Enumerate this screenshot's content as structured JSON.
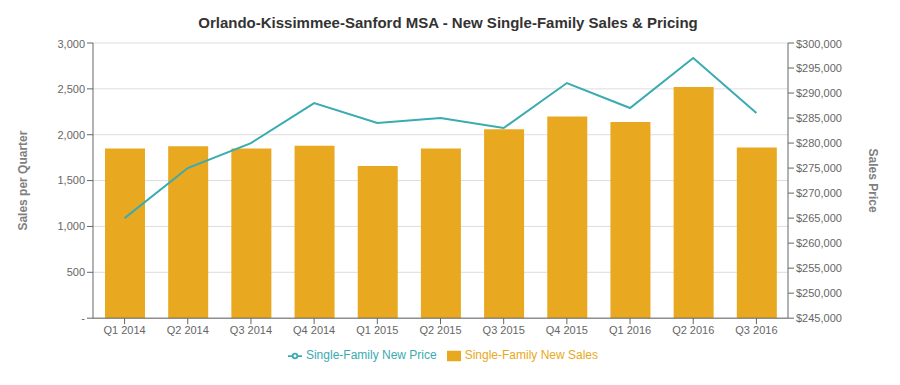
{
  "chart_data": {
    "type": "bar",
    "title": "Orlando-Kissimmee-Sanford  MSA - New Single-Family Sales & Pricing",
    "categories": [
      "Q1 2014",
      "Q2 2014",
      "Q3 2014",
      "Q4 2014",
      "Q1 2015",
      "Q2 2015",
      "Q3 2015",
      "Q4 2015",
      "Q1 2016",
      "Q2 2016",
      "Q3 2016"
    ],
    "series": [
      {
        "name": "Single-Family New Sales",
        "type": "bar",
        "color": "#E8A820",
        "values": [
          1850,
          1875,
          1850,
          1880,
          1660,
          1850,
          2060,
          2200,
          2140,
          2520,
          1860
        ]
      },
      {
        "name": "Single-Family New Price",
        "type": "line",
        "axis": "y2",
        "color": "#3AABB0",
        "values": [
          265000,
          275000,
          280000,
          288000,
          284000,
          285000,
          283000,
          292000,
          287000,
          297000,
          286000
        ]
      }
    ],
    "ylabel": "Sales per Quarter",
    "y2label": "Sales Price",
    "ylim": [
      0,
      3000
    ],
    "yticks": [
      {
        "value": 0,
        "label": "-"
      },
      500,
      {
        "value": 1000,
        "label": "1,000"
      },
      {
        "value": 1500,
        "label": "1,500"
      },
      {
        "value": 2000,
        "label": "2,000"
      },
      {
        "value": 2500,
        "label": "2,500"
      },
      {
        "value": 3000,
        "label": "3,000"
      }
    ],
    "y2lim": [
      245000,
      300000
    ],
    "y2ticks": [
      {
        "value": 245000,
        "label": "$245,000"
      },
      {
        "value": 250000,
        "label": "$250,000"
      },
      {
        "value": 255000,
        "label": "$255,000"
      },
      {
        "value": 260000,
        "label": "$260,000"
      },
      {
        "value": 265000,
        "label": "$265,000"
      },
      {
        "value": 270000,
        "label": "$270,000"
      },
      {
        "value": 275000,
        "label": "$275,000"
      },
      {
        "value": 280000,
        "label": "$280,000"
      },
      {
        "value": 285000,
        "label": "$285,000"
      },
      {
        "value": 290000,
        "label": "$290,000"
      },
      {
        "value": 295000,
        "label": "$295,000"
      },
      {
        "value": 300000,
        "label": "$300,000"
      }
    ],
    "grid": true,
    "legend": "bottom"
  }
}
